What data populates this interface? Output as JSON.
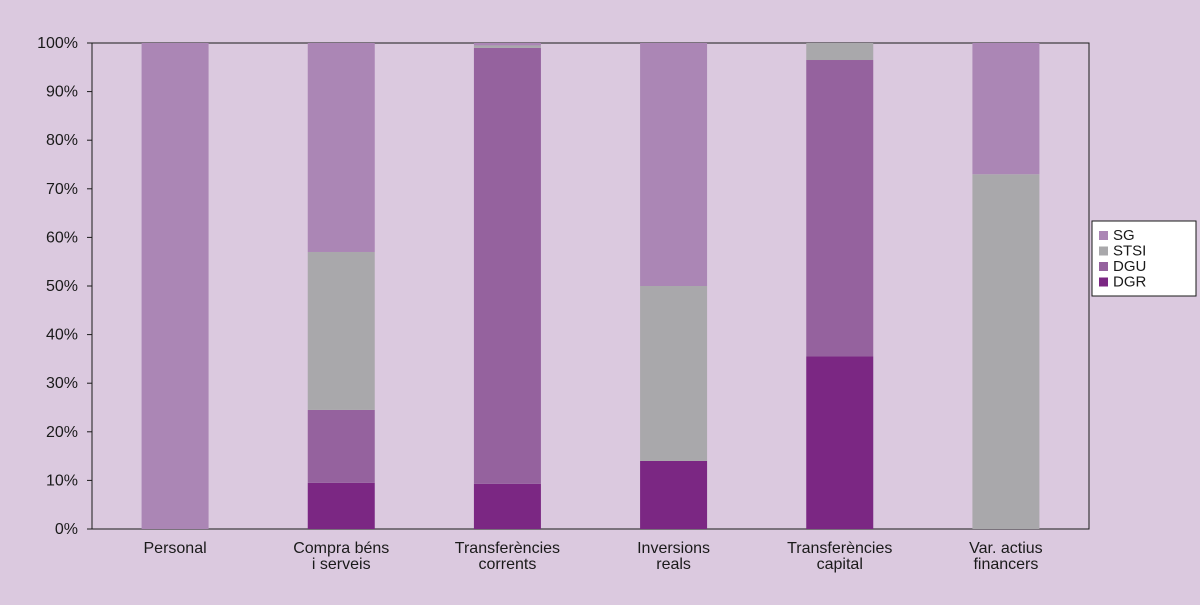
{
  "chart_data": {
    "type": "bar",
    "stacked": true,
    "percent": true,
    "title": "",
    "xlabel": "",
    "ylabel": "",
    "ylim": [
      0,
      100
    ],
    "yticks": [
      "0%",
      "10%",
      "20%",
      "30%",
      "40%",
      "50%",
      "60%",
      "70%",
      "80%",
      "90%",
      "100%"
    ],
    "grid": false,
    "legend_position": "right",
    "categories": [
      [
        "Personal"
      ],
      [
        "Compra béns",
        "i serveis"
      ],
      [
        "Transferències",
        "corrents"
      ],
      [
        "Inversions",
        "reals"
      ],
      [
        "Transferències",
        "capital"
      ],
      [
        "Var. actius",
        "financers"
      ]
    ],
    "series": [
      {
        "name": "DGR",
        "color": "#7b2783",
        "values": [
          0,
          9.5,
          9.3,
          14,
          35.5,
          0
        ]
      },
      {
        "name": "DGU",
        "color": "#95629e",
        "values": [
          0,
          15,
          89.7,
          0,
          61,
          0
        ]
      },
      {
        "name": "STSI",
        "color": "#a9a8ab",
        "values": [
          0,
          32.5,
          0.5,
          36,
          3.5,
          73
        ]
      },
      {
        "name": "SG",
        "color": "#ab86b5",
        "values": [
          100,
          43,
          0.5,
          50,
          0,
          27
        ]
      }
    ],
    "legend_order": [
      "SG",
      "STSI",
      "DGU",
      "DGR"
    ]
  }
}
